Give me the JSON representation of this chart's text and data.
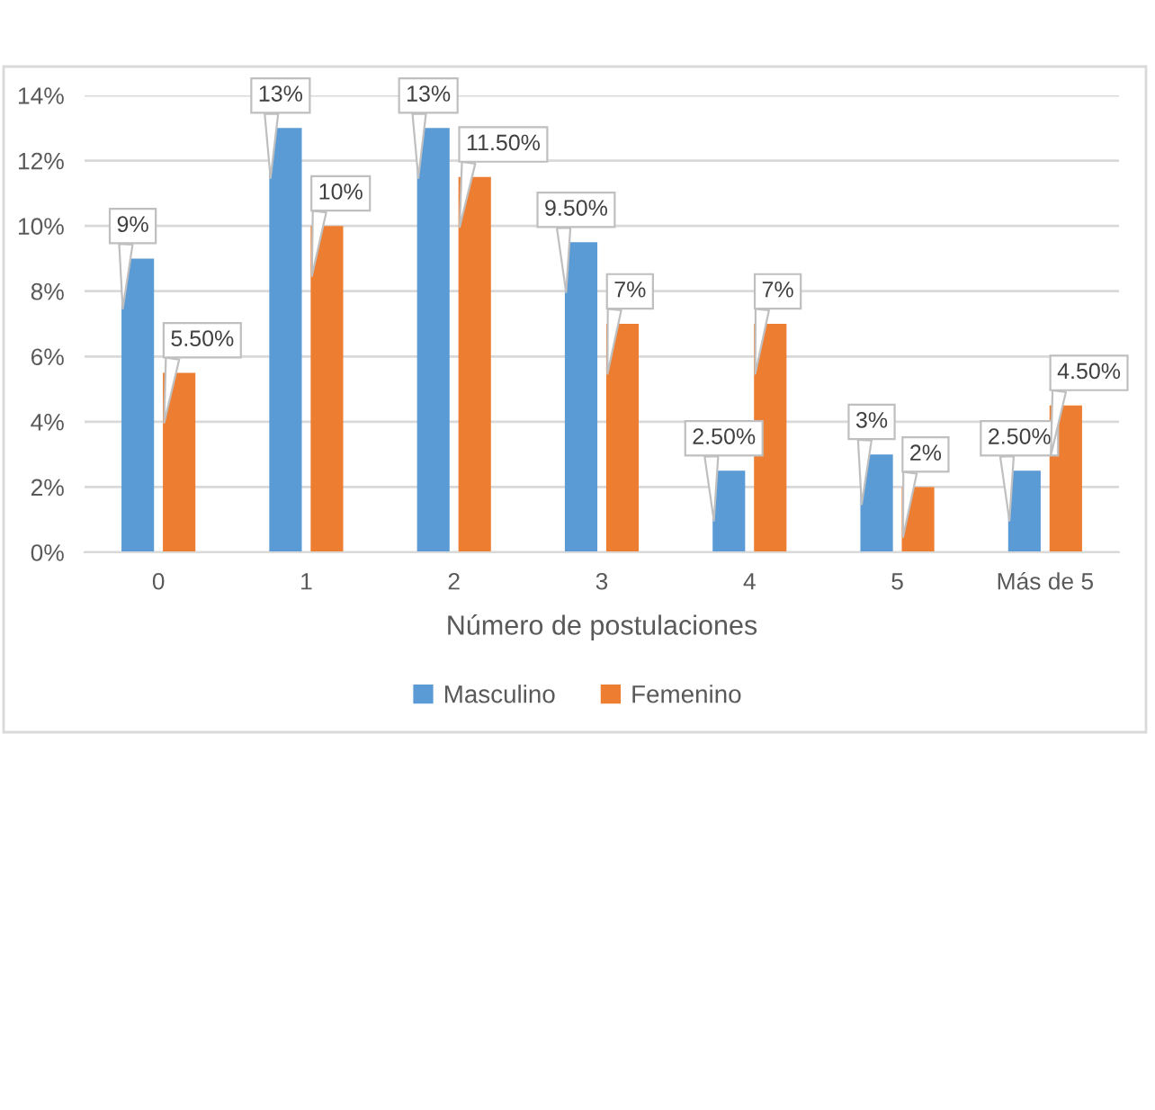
{
  "chart_data": {
    "type": "bar",
    "xlabel": "Número de postulaciones",
    "categories": [
      "0",
      "1",
      "2",
      "3",
      "4",
      "5",
      "Más de 5"
    ],
    "series": [
      {
        "name": "Masculino",
        "color": "#5b9bd5",
        "values": [
          9,
          13,
          13,
          9.5,
          2.5,
          3,
          2.5
        ],
        "value_labels": [
          "9%",
          "13%",
          "13%",
          "9.50%",
          "2.50%",
          "3%",
          "2.50%"
        ]
      },
      {
        "name": "Femenino",
        "color": "#ed7d31",
        "values": [
          5.5,
          10,
          11.5,
          7,
          7,
          2,
          4.5
        ],
        "value_labels": [
          "5.50%",
          "10%",
          "11.50%",
          "7%",
          "7%",
          "2%",
          "4.50%"
        ]
      }
    ],
    "ylim": [
      0,
      14
    ],
    "yticks": [
      {
        "value": 0,
        "label": "0%"
      },
      {
        "value": 2,
        "label": "2%"
      },
      {
        "value": 4,
        "label": "4%"
      },
      {
        "value": 6,
        "label": "6%"
      },
      {
        "value": 8,
        "label": "8%"
      },
      {
        "value": 10,
        "label": "10%"
      },
      {
        "value": 12,
        "label": "12%"
      },
      {
        "value": 14,
        "label": "14%"
      }
    ],
    "grid": "y",
    "legend": "bottom"
  }
}
